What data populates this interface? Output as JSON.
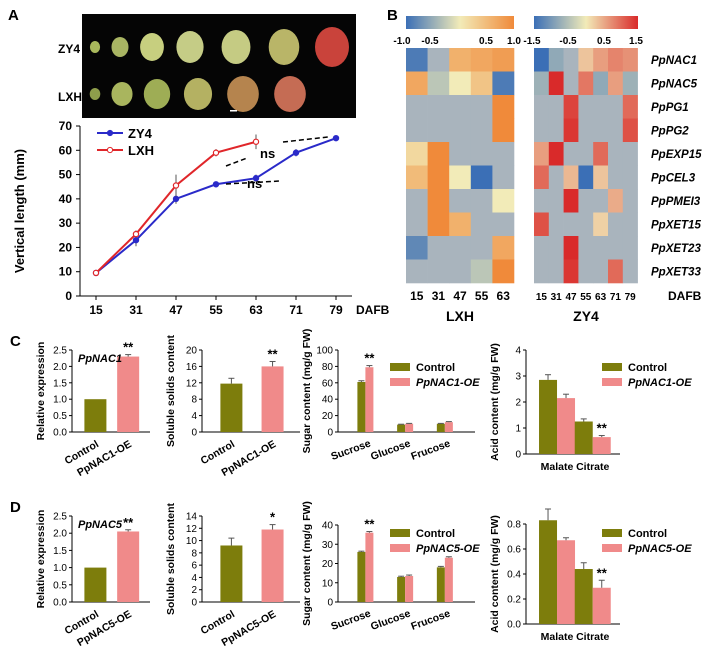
{
  "panel_labels": {
    "a": "A",
    "b": "B",
    "c": "C",
    "d": "D"
  },
  "panel_a": {
    "photo": {
      "row_labels": [
        "ZY4",
        "LXH"
      ],
      "zy4_colors": [
        "#a9b85c",
        "#a9b563",
        "#c7cf7f",
        "#c5cc86",
        "#c5cb83",
        "#b9b568",
        "#c9433b"
      ],
      "lxh_colors": [
        "#8e9d4b",
        "#a9b55e",
        "#9ead55",
        "#b4b162",
        "#b5844e",
        "#c56c54"
      ]
    },
    "chart_data": {
      "type": "line",
      "title": "",
      "xlabel": "DAFB",
      "ylabel": "Vertical length (mm)",
      "categories": [
        "15",
        "31",
        "47",
        "55",
        "63",
        "71",
        "79"
      ],
      "ylim": [
        0,
        70
      ],
      "yticks": [
        "0",
        "10",
        "20",
        "30",
        "40",
        "50",
        "60",
        "70"
      ],
      "series": [
        {
          "name": "ZY4",
          "color": "#2a2ac9",
          "values": [
            9.5,
            23,
            40,
            46,
            48.5,
            59,
            65
          ],
          "errors": [
            1,
            2.5,
            2,
            0.5,
            1.5,
            1.5,
            0.5
          ]
        },
        {
          "name": "LXH",
          "color": "#e0262a",
          "values": [
            9.5,
            25.5,
            45.5,
            59,
            63.5,
            null,
            null
          ],
          "errors": [
            1,
            1.5,
            4.5,
            1.5,
            3,
            null,
            null
          ]
        }
      ],
      "annotations": [
        "ns",
        "ns"
      ]
    }
  },
  "panel_b": {
    "lxh": {
      "scale_min": "-1.0",
      "scale_ticks": [
        "-1.0",
        "-0.5",
        "0.5",
        "1.0"
      ],
      "xlabels": [
        "15",
        "31",
        "47",
        "55",
        "63"
      ],
      "title": "LXH"
    },
    "zy4": {
      "scale_ticks": [
        "-1.5",
        "-0.5",
        "0.5",
        "1.5"
      ],
      "xlabels": [
        "15",
        "31",
        "47",
        "55",
        "63",
        "71",
        "79"
      ],
      "title": "ZY4"
    },
    "dafb": "DAFB",
    "genes": [
      "PpNAC1",
      "PpNAC5",
      "PpPG1",
      "PpPG2",
      "PpEXP15",
      "PpCEL3",
      "PpPMEI3",
      "PpXET15",
      "PpXET23",
      "PpXET33"
    ],
    "lxh_values": [
      [
        -0.9,
        -0.5,
        0.6,
        0.7,
        0.8
      ],
      [
        0.7,
        -0.3,
        0.0,
        0.4,
        -0.9
      ],
      [
        -0.5,
        -0.5,
        -0.5,
        -0.5,
        1.0
      ],
      [
        -0.5,
        -0.5,
        -0.5,
        -0.5,
        1.0
      ],
      [
        0.2,
        1.0,
        -0.5,
        -0.5,
        -0.5
      ],
      [
        0.5,
        1.0,
        0.0,
        -1.0,
        -0.5
      ],
      [
        -0.5,
        1.0,
        -0.5,
        -0.5,
        0.0
      ],
      [
        -0.5,
        1.0,
        0.6,
        -0.5,
        -0.5
      ],
      [
        -0.8,
        -0.5,
        -0.5,
        -0.5,
        0.7
      ],
      [
        -0.5,
        -0.5,
        -0.5,
        -0.3,
        1.0
      ]
    ],
    "zy4_values": [
      [
        -1.5,
        -0.8,
        -0.5,
        0.3,
        0.6,
        0.8,
        0.7
      ],
      [
        -0.7,
        1.5,
        -0.5,
        0.9,
        -0.8,
        0.6,
        -0.7
      ],
      [
        -0.5,
        -0.5,
        1.3,
        -0.5,
        -0.5,
        -0.5,
        1.0
      ],
      [
        -0.5,
        -0.5,
        1.4,
        -0.5,
        -0.5,
        -0.5,
        1.2
      ],
      [
        0.6,
        1.5,
        -0.5,
        -0.5,
        1.0,
        -0.5,
        -0.5
      ],
      [
        1.0,
        -0.5,
        0.4,
        -1.5,
        0.3,
        -0.5,
        -0.5
      ],
      [
        -0.5,
        -0.5,
        1.5,
        -0.5,
        -0.5,
        0.5,
        -0.5
      ],
      [
        1.2,
        -0.5,
        -0.5,
        -0.5,
        0.2,
        -0.5,
        -0.5
      ],
      [
        -0.5,
        -0.5,
        1.5,
        -0.5,
        -0.5,
        -0.5,
        -0.5
      ],
      [
        -0.5,
        -0.5,
        1.4,
        -0.5,
        -0.5,
        1.0,
        -0.5
      ]
    ]
  },
  "panel_c": {
    "expr": {
      "chart_data": {
        "type": "bar",
        "gene": "PpNAC1",
        "ylabel": "Relative expression",
        "categories": [
          "Control",
          "PpNAC1-OE"
        ],
        "values": [
          1.0,
          2.3
        ],
        "errors": [
          0.02,
          0.06
        ],
        "ylim": [
          0,
          2.5
        ],
        "yticks": [
          "0.0",
          "0.5",
          "1.0",
          "1.5",
          "2.0",
          "2.5"
        ],
        "sig": "**"
      }
    },
    "ssc": {
      "chart_data": {
        "type": "bar",
        "ylabel": "Soluble solids content",
        "categories": [
          "Control",
          "PpNAC1-OE"
        ],
        "values": [
          11.8,
          16.0
        ],
        "errors": [
          1.3,
          1.2
        ],
        "ylim": [
          0,
          20
        ],
        "yticks": [
          "0",
          "4",
          "8",
          "12",
          "16",
          "20"
        ],
        "sig": "**"
      }
    },
    "sugar": {
      "chart_data": {
        "type": "bar",
        "ylabel": "Sugar content (mg/g FW)",
        "categories": [
          "Sucrose",
          "Glucose",
          "Frucose"
        ],
        "series": [
          {
            "name": "Control",
            "values": [
              61,
              9,
              10
            ],
            "errors": [
              1.5,
              0.5,
              0.5
            ]
          },
          {
            "name": "PpNAC1-OE",
            "values": [
              79,
              10,
              12
            ],
            "errors": [
              2,
              0.5,
              0.7
            ]
          }
        ],
        "ylim": [
          0,
          100
        ],
        "yticks": [
          "0",
          "20",
          "40",
          "60",
          "80",
          "100"
        ],
        "sig": [
          "**",
          "",
          ""
        ]
      }
    },
    "acid": {
      "chart_data": {
        "type": "bar",
        "ylabel": "Acid content (mg/g FW)",
        "categories": [
          "Malate",
          "Citrate"
        ],
        "series": [
          {
            "name": "Control",
            "values": [
              2.85,
              1.25
            ],
            "errors": [
              0.2,
              0.1
            ]
          },
          {
            "name": "PpNAC1-OE",
            "values": [
              2.15,
              0.65
            ],
            "errors": [
              0.15,
              0.06
            ]
          }
        ],
        "ylim": [
          0,
          4
        ],
        "yticks": [
          "0",
          "1",
          "2",
          "3",
          "4"
        ],
        "sig": [
          "",
          "**"
        ]
      }
    }
  },
  "panel_d": {
    "expr": {
      "chart_data": {
        "type": "bar",
        "gene": "PpNAC5",
        "ylabel": "Relative expression",
        "categories": [
          "Control",
          "PpNAC5-OE"
        ],
        "values": [
          1.0,
          2.05
        ],
        "errors": [
          0.01,
          0.05
        ],
        "ylim": [
          0,
          2.5
        ],
        "yticks": [
          "0.0",
          "0.5",
          "1.0",
          "1.5",
          "2.0",
          "2.5"
        ],
        "sig": "**"
      }
    },
    "ssc": {
      "chart_data": {
        "type": "bar",
        "ylabel": "Soluble solids content",
        "categories": [
          "Control",
          "PpNAC5-OE"
        ],
        "values": [
          9.2,
          11.8
        ],
        "errors": [
          1.2,
          0.8
        ],
        "ylim": [
          0,
          14
        ],
        "yticks": [
          "0",
          "2",
          "4",
          "6",
          "8",
          "10",
          "12",
          "14"
        ],
        "sig": "*"
      }
    },
    "sugar": {
      "chart_data": {
        "type": "bar",
        "ylabel": "Sugar content (mg/g FW)",
        "categories": [
          "Sucrose",
          "Glucose",
          "Frucose"
        ],
        "series": [
          {
            "name": "Control",
            "values": [
              26,
              13,
              18
            ],
            "errors": [
              0.4,
              0.4,
              0.5
            ]
          },
          {
            "name": "PpNAC5-OE",
            "values": [
              36,
              13.5,
              23
            ],
            "errors": [
              0.6,
              0.5,
              0.5
            ]
          }
        ],
        "ylim": [
          0,
          40
        ],
        "yticks": [
          "0",
          "10",
          "20",
          "30",
          "40"
        ],
        "sig": [
          "**",
          "",
          ""
        ]
      }
    },
    "acid": {
      "chart_data": {
        "type": "bar",
        "ylabel": "Acid content (mg/g FW)",
        "categories": [
          "Malate",
          "Citrate"
        ],
        "series": [
          {
            "name": "Control",
            "values": [
              0.83,
              0.44
            ],
            "errors": [
              0.09,
              0.05
            ]
          },
          {
            "name": "PpNAC5-OE",
            "values": [
              0.67,
              0.29
            ],
            "errors": [
              0.02,
              0.06
            ]
          }
        ],
        "ylim": [
          0,
          0.8
        ],
        "yticks": [
          "0.0",
          "0.2",
          "0.4",
          "0.6",
          "0.8"
        ],
        "sig": [
          "",
          "**"
        ]
      }
    }
  },
  "colors": {
    "control": "#7d7d0c",
    "oe": "#f08a8a",
    "zy4": "#2a2ac9",
    "lxh": "#e0262a"
  }
}
